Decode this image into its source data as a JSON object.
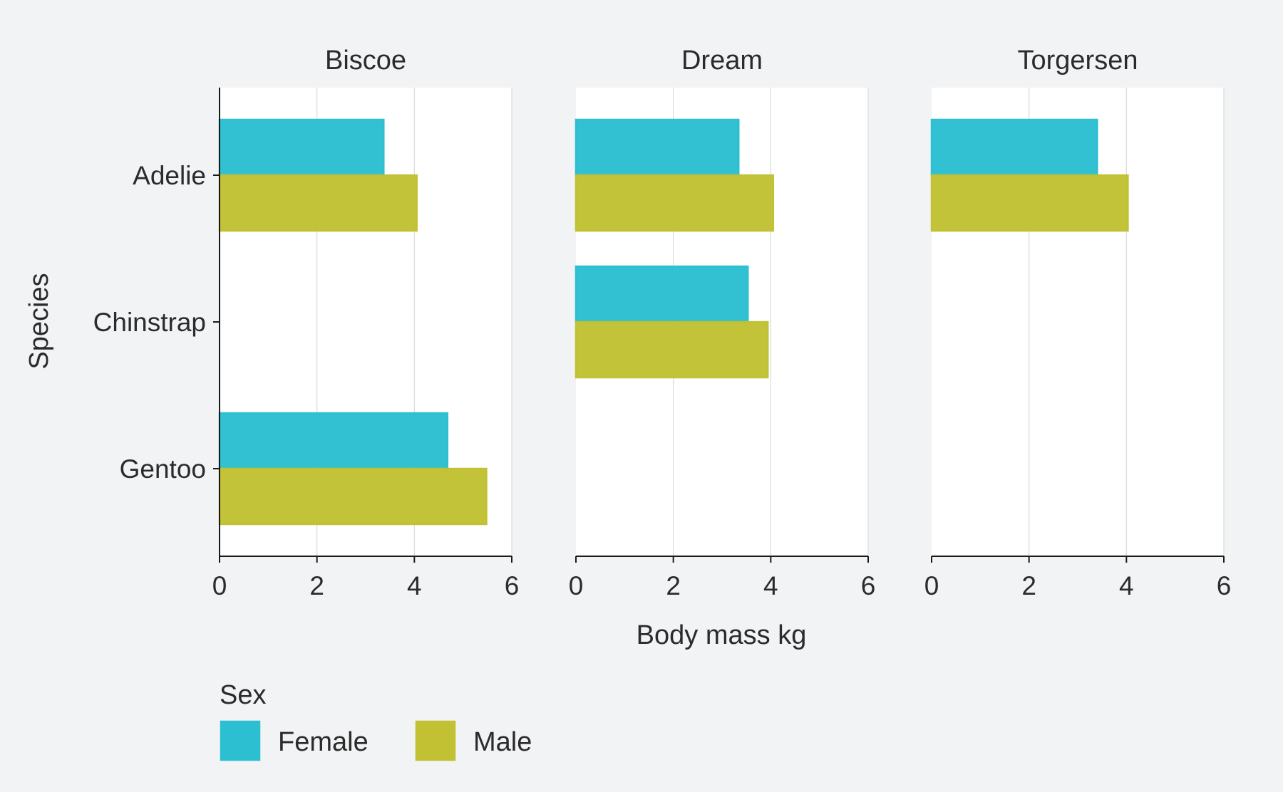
{
  "chart_data": {
    "type": "bar",
    "orientation": "horizontal",
    "facet_by": [
      "Biscoe",
      "Dream",
      "Torgersen"
    ],
    "categories": [
      "Adelie",
      "Chinstrap",
      "Gentoo"
    ],
    "xlabel": "Body mass kg",
    "ylabel": "Species",
    "xlim": [
      0,
      6
    ],
    "xticks": [
      0,
      2,
      4,
      6
    ],
    "grid": "vertical major",
    "legend": {
      "title": "Sex",
      "placement": "bottom-left",
      "entries": [
        "Female",
        "Male"
      ]
    },
    "series_colors": {
      "Female": "#2bbfd1",
      "Male": "#c1c133"
    },
    "facets": [
      {
        "name": "Biscoe",
        "series": [
          {
            "name": "Female",
            "values": [
              3.37,
              null,
              4.68
            ]
          },
          {
            "name": "Male",
            "values": [
              4.05,
              null,
              5.48
            ]
          }
        ]
      },
      {
        "name": "Dream",
        "series": [
          {
            "name": "Female",
            "values": [
              3.34,
              3.53,
              null
            ]
          },
          {
            "name": "Male",
            "values": [
              4.05,
              3.94,
              null
            ]
          }
        ]
      },
      {
        "name": "Torgersen",
        "series": [
          {
            "name": "Female",
            "values": [
              3.4,
              null,
              null
            ]
          },
          {
            "name": "Male",
            "values": [
              4.03,
              null,
              null
            ]
          }
        ]
      }
    ]
  }
}
